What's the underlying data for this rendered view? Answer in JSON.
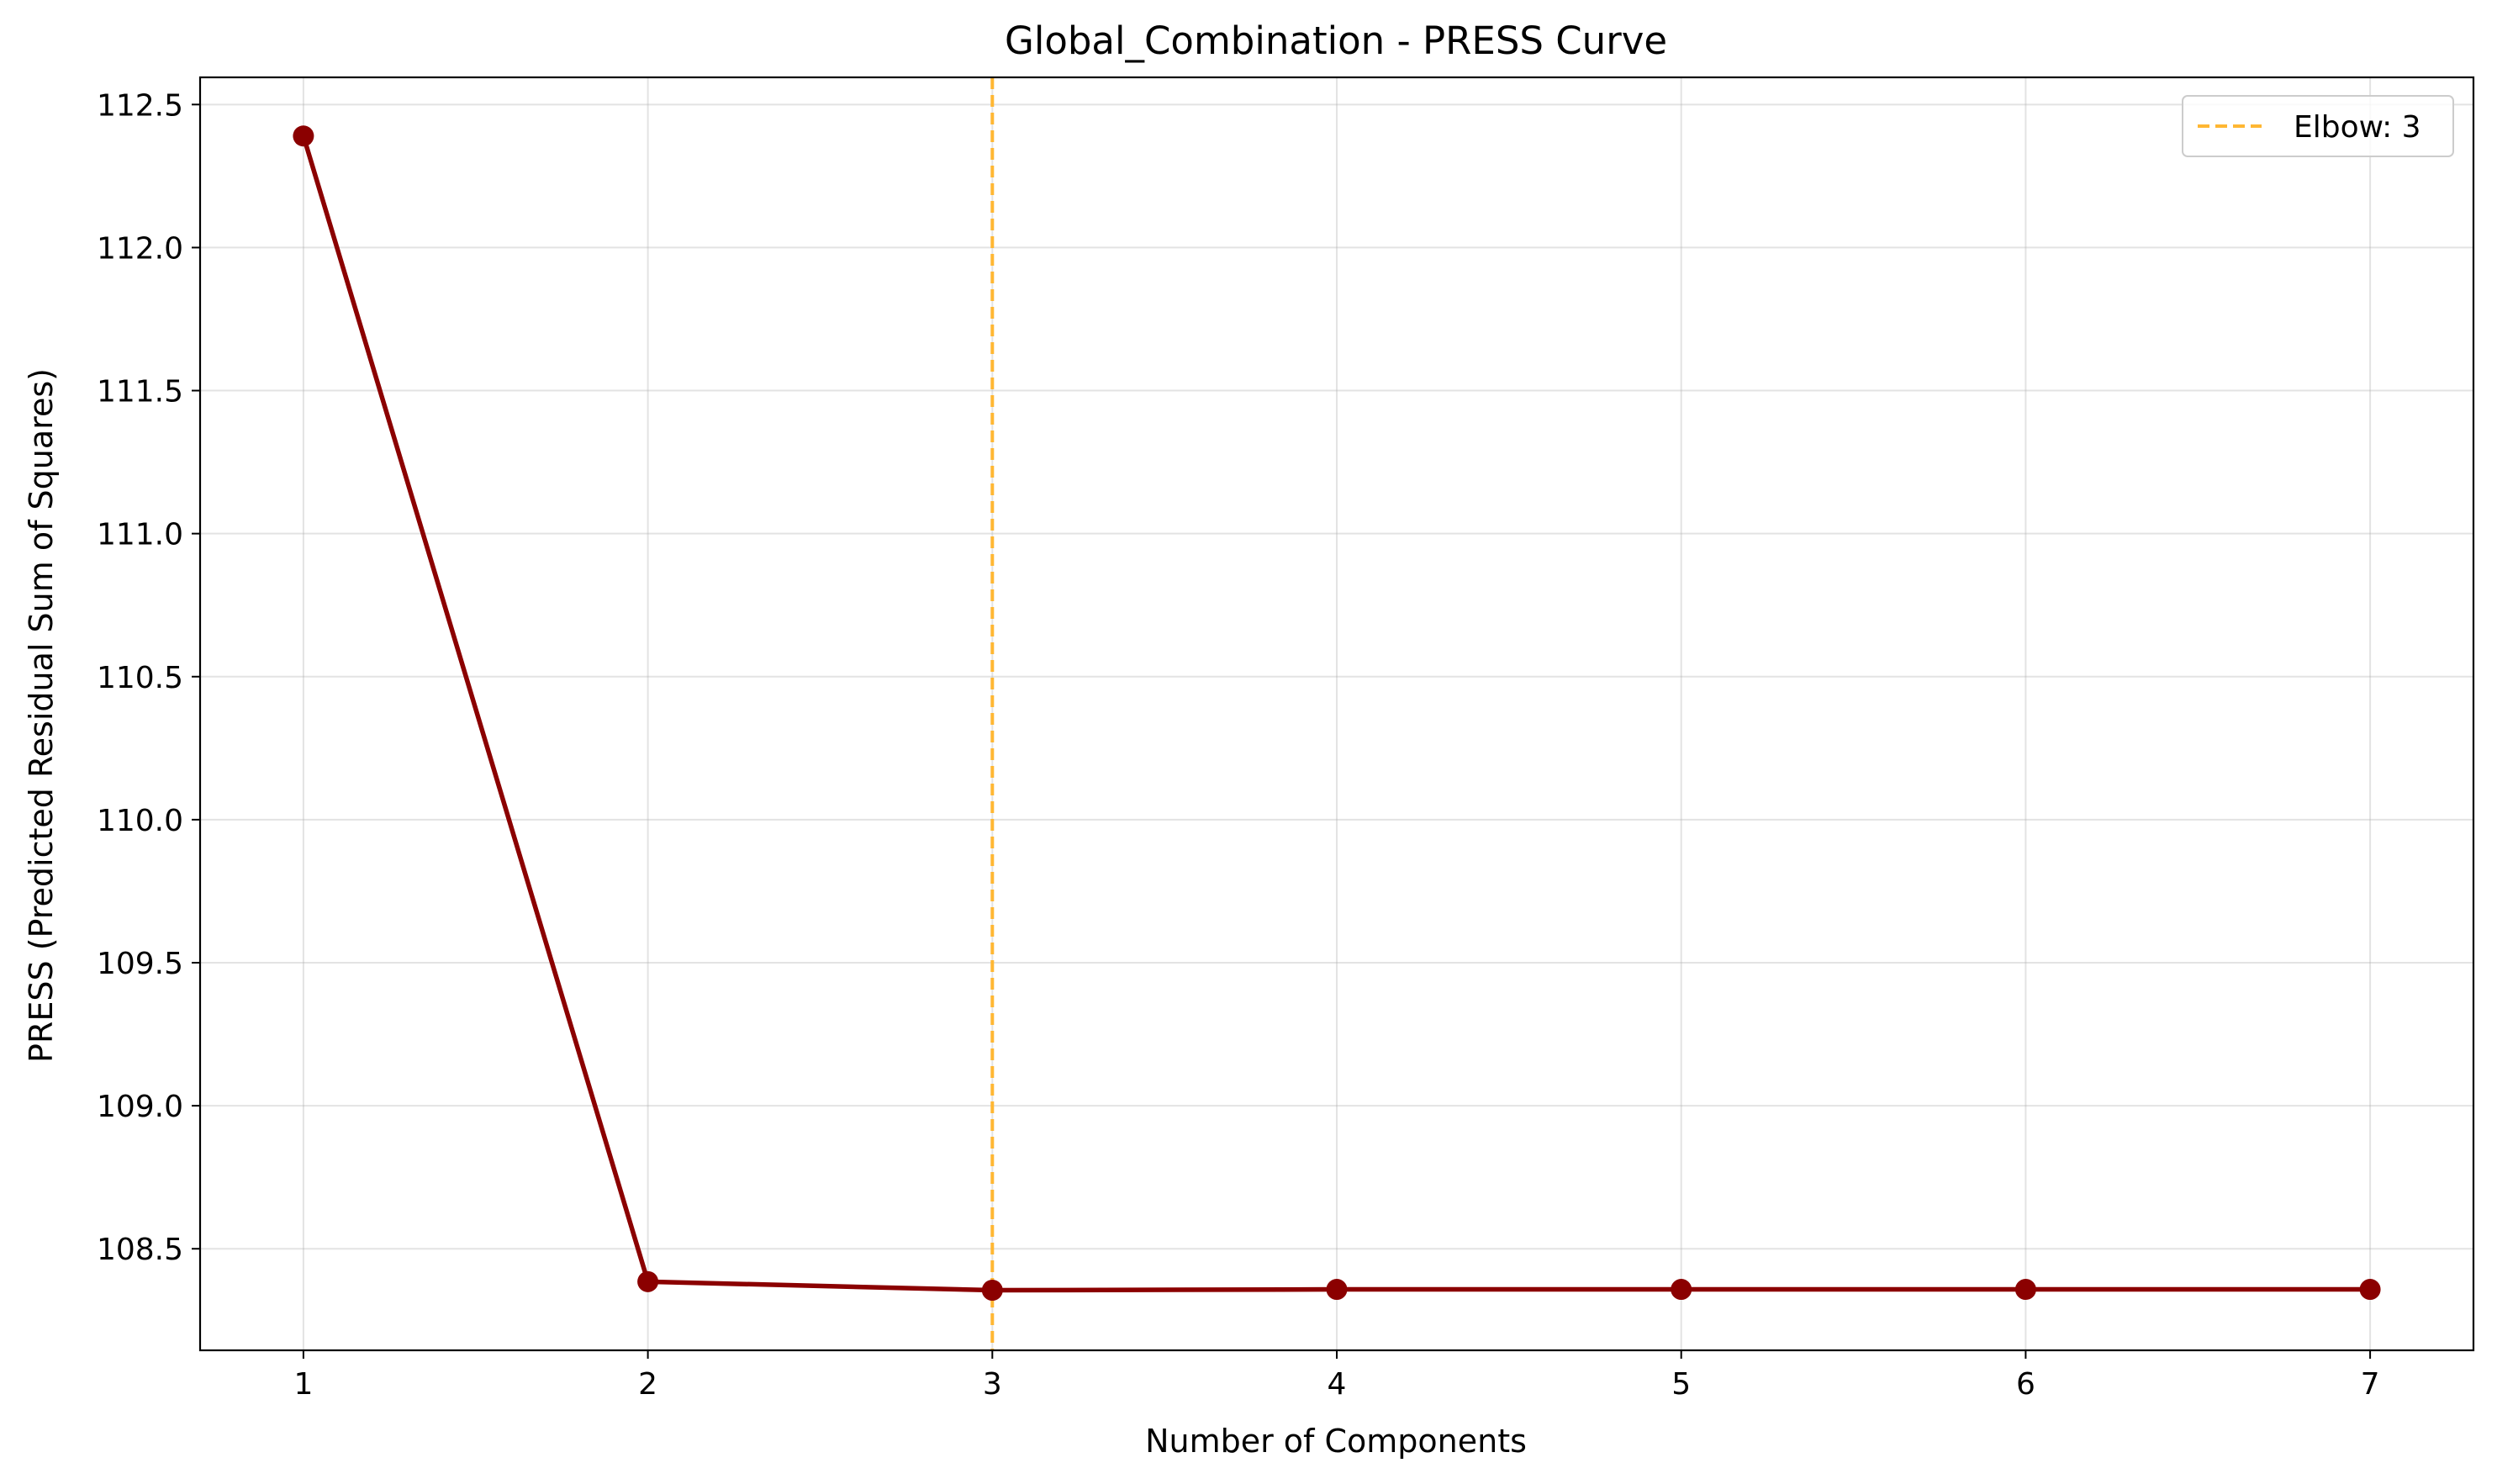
{
  "chart_data": {
    "type": "line",
    "title": "Global_Combination - PRESS Curve",
    "xlabel": "Number of Components",
    "ylabel": "PRESS (Predicted Residual Sum of Squares)",
    "x": [
      1,
      2,
      3,
      4,
      5,
      6,
      7
    ],
    "series": [
      {
        "values": [
          112.39,
          108.385,
          108.355,
          108.358,
          108.358,
          108.358,
          108.358
        ],
        "color": "#8b0000",
        "marker": "circle"
      }
    ],
    "elbow": {
      "x": 3,
      "label": "Elbow: 3",
      "color": "#ffb733",
      "style": "dashed"
    },
    "xlim": [
      0.7,
      7.3
    ],
    "ylim": [
      108.145,
      112.595
    ],
    "xticks": [
      "1",
      "2",
      "3",
      "4",
      "5",
      "6",
      "7"
    ],
    "yticks": [
      "108.5",
      "109.0",
      "109.5",
      "110.0",
      "110.5",
      "111.0",
      "111.5",
      "112.0",
      "112.5"
    ],
    "grid": true,
    "legend_position": "top-right"
  }
}
